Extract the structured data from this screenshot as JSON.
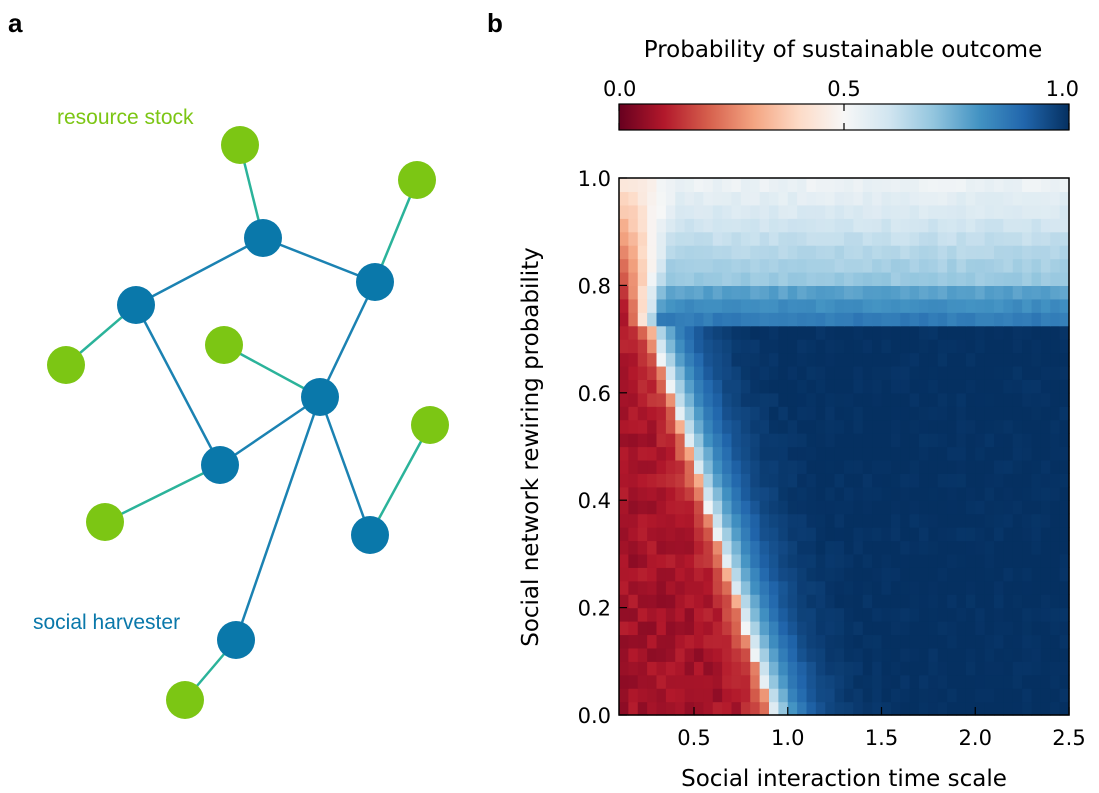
{
  "panels": {
    "a": "a",
    "b": "b"
  },
  "network": {
    "labels": {
      "resource": "resource stock",
      "harvester": "social harvester"
    },
    "colors": {
      "resource": "#7cc614",
      "harvester": "#0a78aa",
      "social_edge": "#1b82b2",
      "resource_edge": "#2bb39a"
    }
  },
  "chart_data": {
    "type": "heatmap",
    "title": "Probability of sustainable outcome",
    "xlabel": "Social interaction time scale",
    "ylabel": "Social network rewiring probability",
    "xlim": [
      0.1,
      2.5
    ],
    "ylim": [
      0.0,
      1.0
    ],
    "xticks": [
      "0.5",
      "1.0",
      "1.5",
      "2.0",
      "2.5"
    ],
    "xtick_values": [
      0.5,
      1.0,
      1.5,
      2.0,
      2.5
    ],
    "yticks": [
      "0.0",
      "0.2",
      "0.4",
      "0.6",
      "0.8",
      "1.0"
    ],
    "ytick_values": [
      0.0,
      0.2,
      0.4,
      0.6,
      0.8,
      1.0
    ],
    "colorbar": {
      "range": [
        0.0,
        1.0
      ],
      "ticks": [
        "0.0",
        "0.5",
        "1.0"
      ],
      "tick_values": [
        0.0,
        0.5,
        1.0
      ],
      "colormap": "RdBu",
      "colors": [
        "#67001f",
        "#b2182b",
        "#d6604d",
        "#f4a582",
        "#fddbc7",
        "#f7f7f7",
        "#d1e5f0",
        "#92c5de",
        "#4393c3",
        "#2166ac",
        "#053061"
      ]
    },
    "grid": false,
    "regions": {
      "boundary": "diagonal from (0.27, 0.72) to (0.92, 0.0); unsustainable below-left",
      "upper_band_rewiring": 0.72,
      "upper_band_values": {
        "rewiring_0.75_0.80": 0.75,
        "rewiring_0.85_1.0": 0.55
      },
      "sustainable_region_value": 1.0,
      "unsustainable_region_value": 0.0
    }
  }
}
